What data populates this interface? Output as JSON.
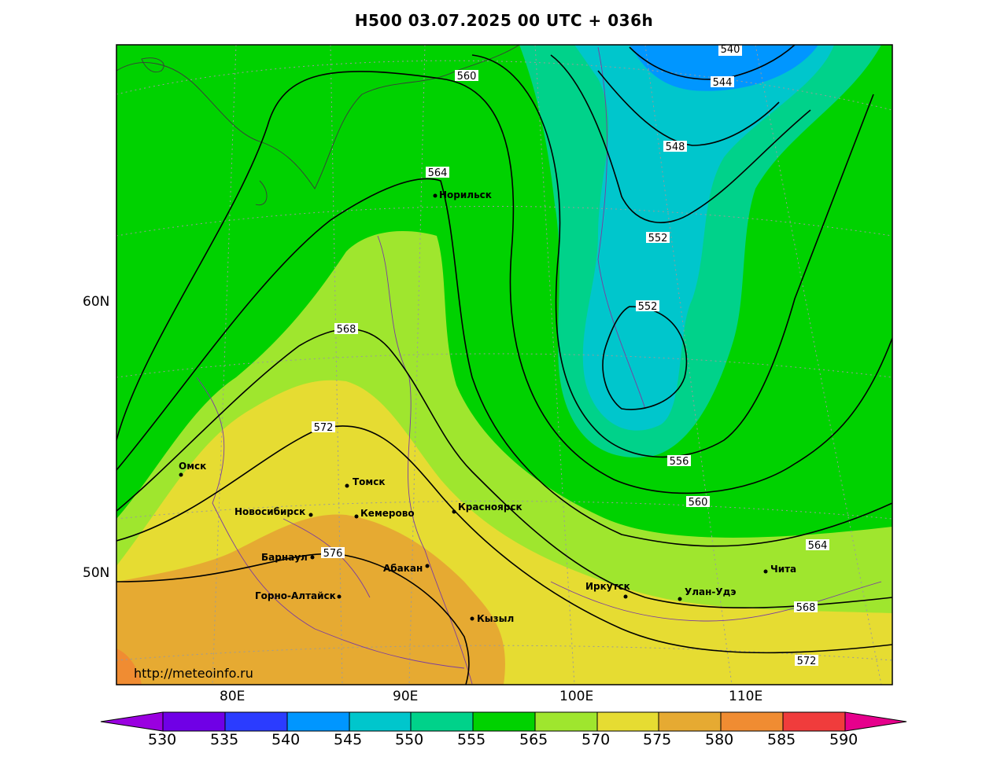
{
  "title": "H500  03.07.2025 00 UTC + 036h",
  "watermark": "http://meteoinfo.ru",
  "lat_labels": [
    "60N",
    "50N"
  ],
  "lon_labels": [
    "80E",
    "90E",
    "100E",
    "110E"
  ],
  "colorbar": {
    "ticks": [
      "530",
      "535",
      "540",
      "545",
      "550",
      "555",
      "565",
      "570",
      "575",
      "580",
      "585",
      "590"
    ],
    "colors": [
      "#9a00e0",
      "#7000e6",
      "#2b3cff",
      "#0096ff",
      "#00c6cc",
      "#00d28a",
      "#00d200",
      "#9fe62e",
      "#e6dc32",
      "#e6aa32",
      "#f08c32",
      "#f03c3c",
      "#e6008c"
    ]
  },
  "contour_labels": [
    "540",
    "544",
    "548",
    "552",
    "552",
    "556",
    "560",
    "560",
    "564",
    "564",
    "568",
    "568",
    "572",
    "572",
    "576"
  ],
  "cities": [
    "Норильск",
    "Омск",
    "Томск",
    "Новосибирск",
    "Кемерово",
    "Красноярск",
    "Барнаул",
    "Абакан",
    "Горно-Алтайск",
    "Кызыл",
    "Иркутск",
    "Улан-Удэ",
    "Чита"
  ]
}
